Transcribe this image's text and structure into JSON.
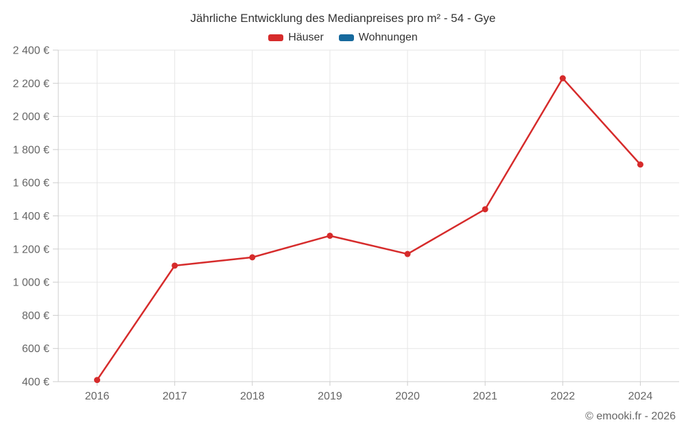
{
  "title": "Jährliche Entwicklung des Medianpreises pro m² - 54 - Gye",
  "credits": "© emooki.fr - 2026",
  "legend": {
    "items": [
      {
        "label": "Häuser",
        "color": "#d62b2b"
      },
      {
        "label": "Wohnungen",
        "color": "#16699d"
      }
    ]
  },
  "chart_data": {
    "type": "line",
    "title": "Jährliche Entwicklung des Medianpreises pro m² - 54 - Gye",
    "categories": [
      "2016",
      "2017",
      "2018",
      "2019",
      "2020",
      "2021",
      "2022",
      "2024"
    ],
    "series": [
      {
        "name": "Häuser",
        "color": "#d62b2b",
        "values": [
          410,
          1100,
          1150,
          1280,
          1170,
          1440,
          2230,
          1710
        ]
      },
      {
        "name": "Wohnungen",
        "color": "#16699d",
        "values": []
      }
    ],
    "xlabel": "",
    "ylabel": "",
    "ylim": [
      400,
      2400
    ],
    "y_ticks": [
      400,
      600,
      800,
      1000,
      1200,
      1400,
      1600,
      1800,
      2000,
      2200,
      2400
    ],
    "y_tick_labels": [
      "400 €",
      "600 €",
      "800 €",
      "1 000 €",
      "1 200 €",
      "1 400 €",
      "1 600 €",
      "1 800 €",
      "2 000 €",
      "2 200 €",
      "2 400 €"
    ],
    "grid": true,
    "legend_position": "top",
    "colors": {
      "grid_line": "#e6e6e6",
      "axis_line": "#cccccc",
      "axis_label": "#666666",
      "title_text": "#333333"
    }
  }
}
